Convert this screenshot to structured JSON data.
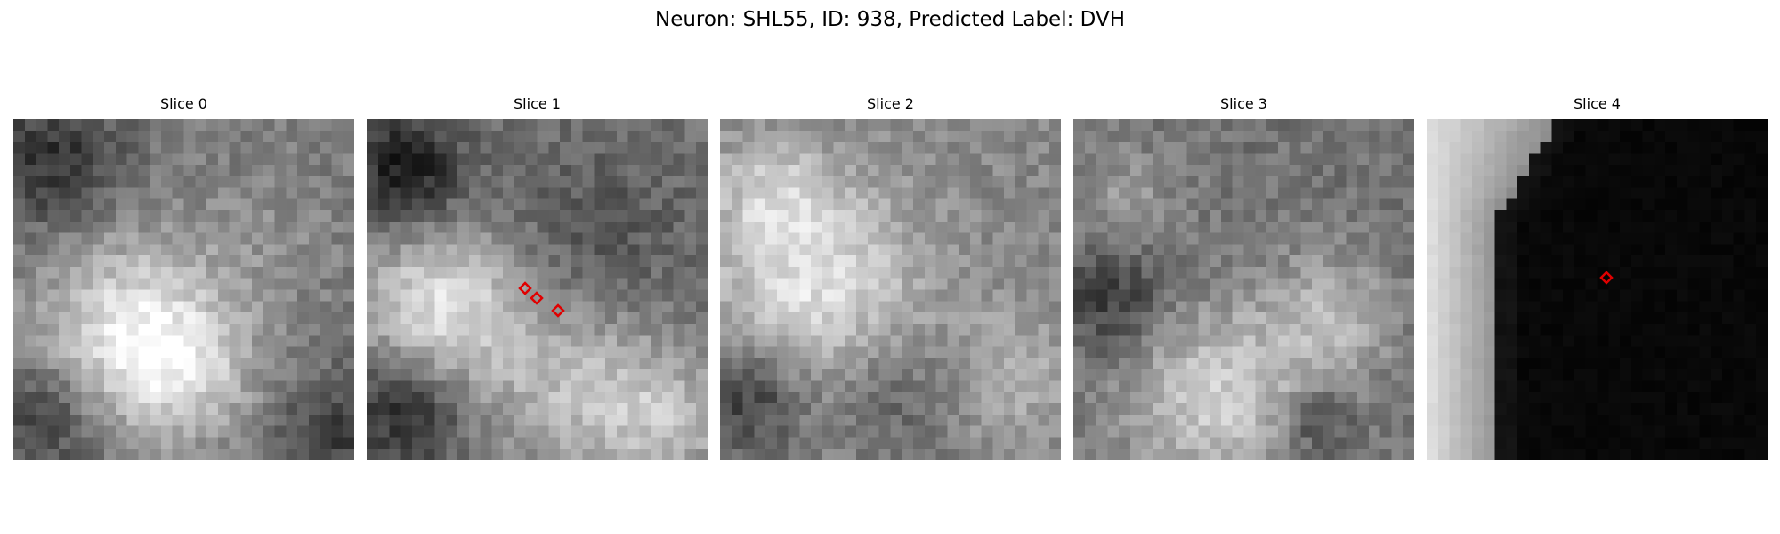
{
  "figure": {
    "title": "Neuron: SHL55, ID: 938, Predicted Label: DVH"
  },
  "panels": [
    {
      "title": "Slice 0",
      "marker_count": 0
    },
    {
      "title": "Slice 1",
      "marker_count": 3
    },
    {
      "title": "Slice 2",
      "marker_count": 0
    },
    {
      "title": "Slice 3",
      "marker_count": 0
    },
    {
      "title": "Slice 4",
      "marker_count": 1
    }
  ],
  "colors": {
    "marker": "#e00000",
    "background": "#ffffff"
  },
  "colormap": "gray"
}
